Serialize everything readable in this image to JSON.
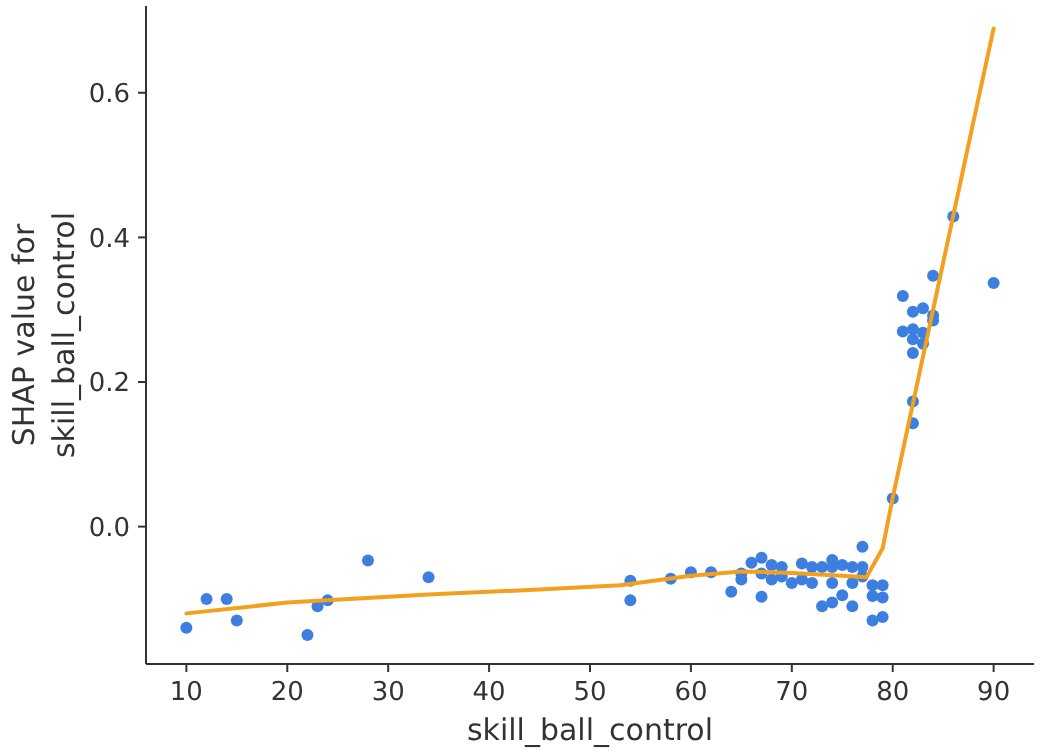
{
  "chart_data": {
    "type": "scatter",
    "xlabel": "skill_ball_control",
    "ylabel": "SHAP value for\nskill_ball_control",
    "xlim": [
      6,
      94
    ],
    "ylim": [
      -0.19,
      0.72
    ],
    "xticks": [
      10,
      20,
      30,
      40,
      50,
      60,
      70,
      80,
      90
    ],
    "yticks": [
      {
        "value": 0,
        "label": "0.0"
      },
      {
        "value": 0.2,
        "label": "0.2"
      },
      {
        "value": 0.4,
        "label": "0.4"
      },
      {
        "value": 0.6,
        "label": "0.6"
      }
    ],
    "grid": false,
    "series": [
      {
        "marker": "circle",
        "color": "#3c7fe0",
        "x": [
          10,
          12,
          14,
          15,
          22,
          23,
          24,
          28,
          34,
          54,
          54,
          58,
          60,
          62,
          64,
          65,
          65,
          66,
          67,
          67,
          67,
          68,
          68,
          69,
          69,
          70,
          71,
          71,
          72,
          72,
          73,
          73,
          74,
          74,
          74,
          74,
          75,
          75,
          76,
          76,
          76,
          77,
          77,
          77,
          78,
          78,
          78,
          79,
          79,
          79,
          80,
          86,
          84,
          90,
          81,
          83,
          82,
          84,
          84,
          81,
          82,
          83,
          82,
          83,
          82,
          82,
          82
        ],
        "values": [
          -0.14,
          -0.1,
          -0.1,
          -0.13,
          -0.15,
          -0.11,
          -0.102,
          -0.047,
          -0.07,
          -0.075,
          -0.102,
          -0.072,
          -0.063,
          -0.063,
          -0.09,
          -0.073,
          -0.065,
          -0.05,
          -0.043,
          -0.065,
          -0.097,
          -0.053,
          -0.073,
          -0.056,
          -0.069,
          -0.078,
          -0.051,
          -0.073,
          -0.056,
          -0.078,
          -0.056,
          -0.11,
          -0.046,
          -0.056,
          -0.078,
          -0.105,
          -0.053,
          -0.095,
          -0.056,
          -0.078,
          -0.11,
          -0.028,
          -0.056,
          -0.069,
          -0.081,
          -0.096,
          -0.13,
          -0.081,
          -0.098,
          -0.125,
          0.039,
          0.429,
          0.347,
          0.337,
          0.319,
          0.302,
          0.297,
          0.292,
          0.285,
          0.27,
          0.273,
          0.268,
          0.259,
          0.253,
          0.24,
          0.173,
          0.143
        ]
      },
      {
        "type": "line",
        "color": "#f2a01e",
        "line_style": "solid",
        "x": [
          10,
          20,
          34,
          45,
          53,
          60,
          65,
          70,
          75,
          77.4,
          79,
          80,
          82,
          84,
          86,
          88,
          90
        ],
        "values": [
          -0.12,
          -0.105,
          -0.094,
          -0.087,
          -0.081,
          -0.068,
          -0.062,
          -0.064,
          -0.068,
          -0.07,
          -0.03,
          0.04,
          0.17,
          0.3,
          0.43,
          0.56,
          0.689
        ]
      }
    ]
  }
}
